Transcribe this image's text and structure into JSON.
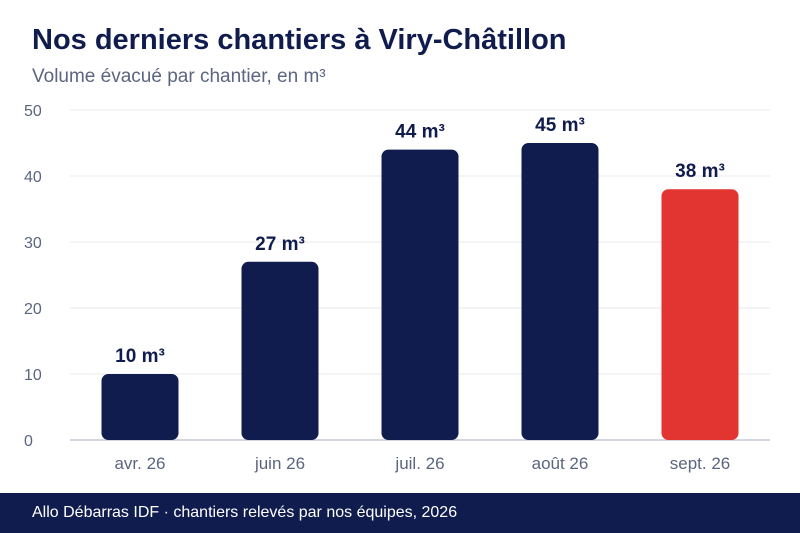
{
  "header": {
    "title": "Nos derniers chantiers à Viry-Châtillon",
    "subtitle": "Volume évacué par chantier, en m³"
  },
  "footer": {
    "text": "Allo Débarras IDF · chantiers relevés par nos équipes, 2026"
  },
  "colors": {
    "bar": "#0f1c4d",
    "highlight": "#e23431",
    "grid": "#e8e8ec",
    "axis": "#c5c9d6",
    "tick_label": "#5b6580",
    "data_label": "#0f1c4d"
  },
  "chart_data": {
    "type": "bar",
    "title": "Nos derniers chantiers à Viry-Châtillon",
    "subtitle": "Volume évacué par chantier, en m³",
    "xlabel": "",
    "ylabel": "",
    "categories": [
      "avr. 26",
      "juin 26",
      "juil. 26",
      "août 26",
      "sept. 26"
    ],
    "values": [
      10,
      27,
      44,
      45,
      38
    ],
    "data_labels": [
      "10 m³",
      "27 m³",
      "44 m³",
      "45 m³",
      "38 m³"
    ],
    "highlight_index": 4,
    "ylim": [
      0,
      50
    ],
    "yticks": [
      0,
      10,
      20,
      30,
      40,
      50
    ],
    "grid": true,
    "legend": "none"
  }
}
